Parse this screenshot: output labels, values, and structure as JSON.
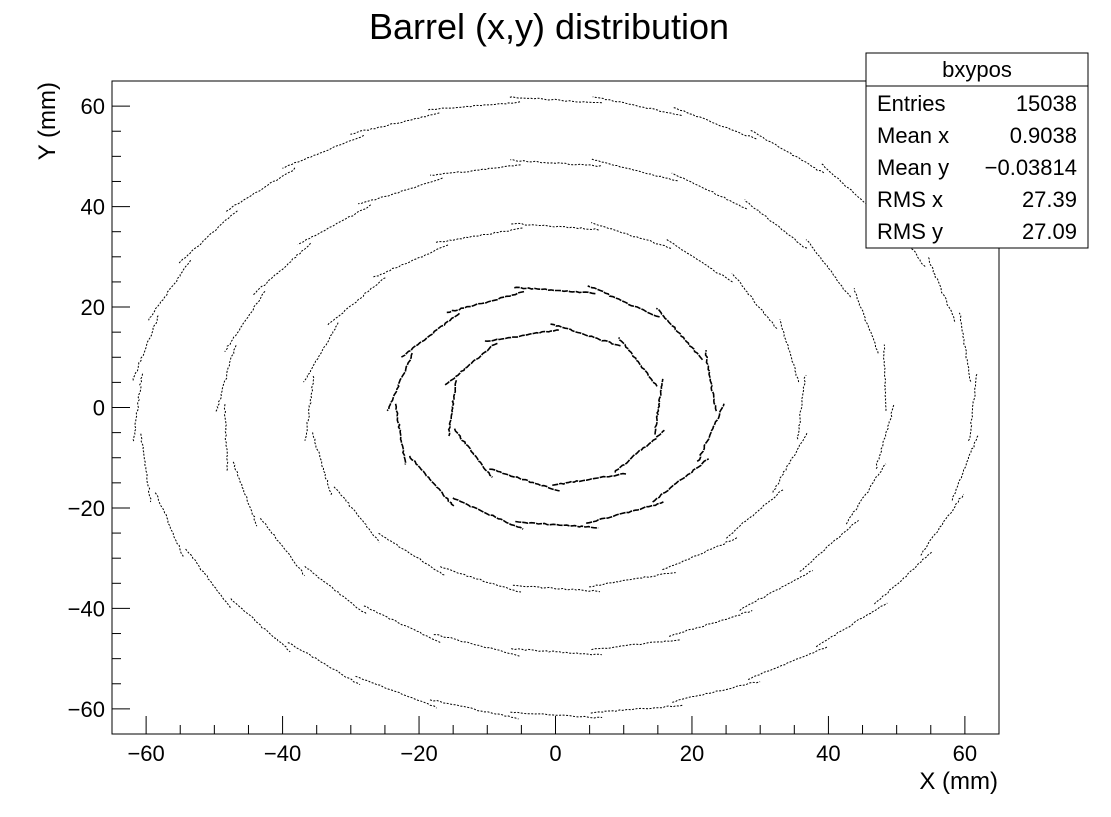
{
  "chart_data": {
    "type": "scatter",
    "title": "Barrel (x,y) distribution",
    "xlabel": "X (mm)",
    "ylabel": "Y (mm)",
    "xlim": [
      -65,
      65
    ],
    "ylim": [
      -65,
      65
    ],
    "x_ticks": [
      -60,
      -40,
      -20,
      0,
      20,
      40,
      60
    ],
    "y_ticks": [
      -60,
      -40,
      -20,
      0,
      20,
      40,
      60
    ],
    "tick_labels": {
      "x": [
        "−60",
        "−40",
        "−20",
        "0",
        "20",
        "40",
        "60"
      ],
      "y": [
        "−60",
        "−40",
        "−20",
        "0",
        "20",
        "40",
        "60"
      ]
    },
    "grid": false,
    "point_color": "#000000",
    "layers": [
      {
        "radius": 15.5,
        "n_staves": 10
      },
      {
        "radius": 23.5,
        "n_staves": 14
      },
      {
        "radius": 36,
        "n_staves": 20
      },
      {
        "radius": 48.5,
        "n_staves": 26
      },
      {
        "radius": 61,
        "n_staves": 32
      }
    ],
    "stats_box": {
      "name": "bxypos",
      "placement": "top-right",
      "rows": [
        {
          "label": "Entries",
          "value": "15038"
        },
        {
          "label": "Mean x",
          "value": "0.9038"
        },
        {
          "label": "Mean y",
          "value": "−0.03814"
        },
        {
          "label": "RMS x",
          "value": "27.39"
        },
        {
          "label": "RMS y",
          "value": "27.09"
        }
      ]
    }
  }
}
